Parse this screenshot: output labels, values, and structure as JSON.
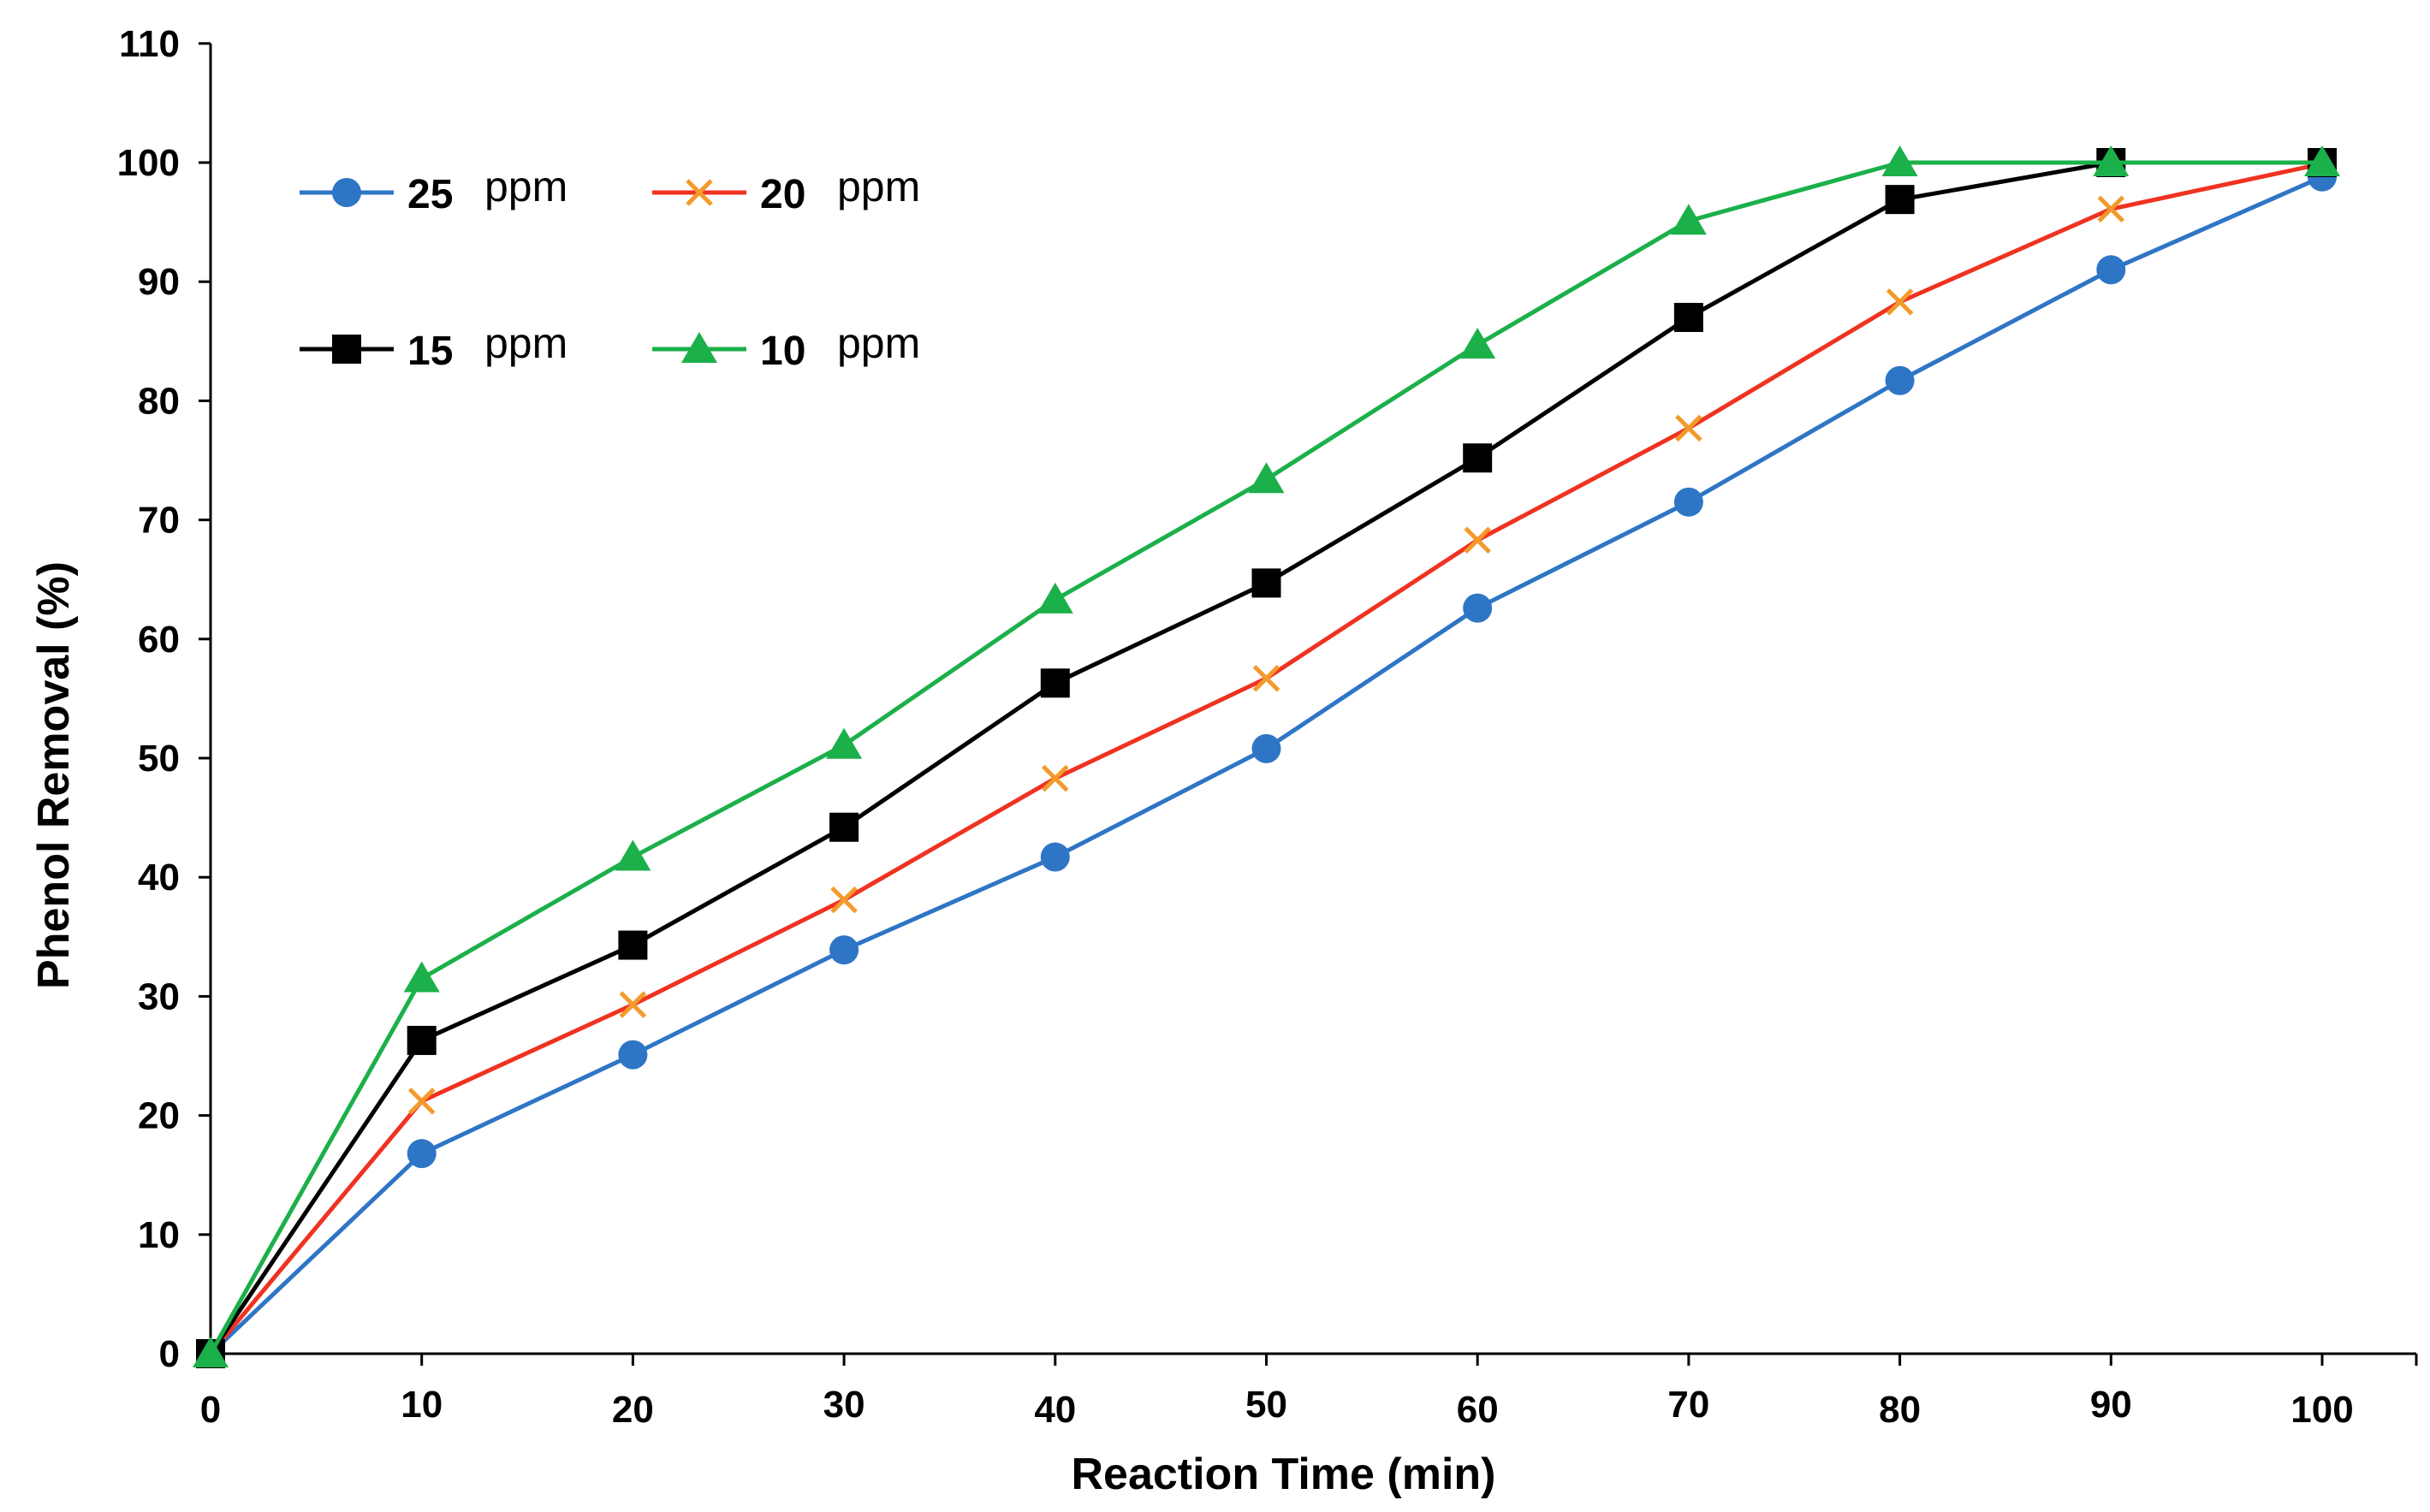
{
  "chart_data": {
    "type": "line",
    "title": "",
    "xlabel": "Reaction Time (min)",
    "ylabel": "Phenol Removal (%)",
    "xlim": [
      0,
      105
    ],
    "ylim": [
      0,
      110
    ],
    "x_ticks": [
      0,
      10,
      20,
      30,
      40,
      50,
      60,
      70,
      80,
      90,
      100
    ],
    "y_ticks": [
      0,
      10,
      20,
      30,
      40,
      50,
      60,
      70,
      80,
      90,
      100,
      110
    ],
    "grid": false,
    "legend_position": "top-left",
    "x": [
      0,
      10,
      20,
      30,
      40,
      50,
      60,
      70,
      80,
      90,
      100
    ],
    "series": [
      {
        "name": "25 ppm",
        "num": "25",
        "unit": "ppm",
        "color": "#2E75C6",
        "marker": "circle",
        "values": [
          0,
          16.8,
          25.1,
          33.9,
          41.7,
          50.8,
          62.6,
          71.5,
          81.7,
          91.0,
          98.8
        ]
      },
      {
        "name": "20 ppm",
        "num": "20",
        "unit": "ppm",
        "color": "#F03221",
        "marker_color": "#F39A2B",
        "marker": "x",
        "values": [
          0,
          21.2,
          29.3,
          38.1,
          48.3,
          56.7,
          68.3,
          77.7,
          88.3,
          96.1,
          99.9
        ]
      },
      {
        "name": "15 ppm",
        "num": "15",
        "unit": "ppm",
        "color": "#000000",
        "marker": "square",
        "values": [
          0,
          26.3,
          34.3,
          44.2,
          56.3,
          64.7,
          75.2,
          87.0,
          96.9,
          100.0,
          100.0
        ]
      },
      {
        "name": "10 ppm",
        "num": "10",
        "unit": "ppm",
        "color": "#1BB04A",
        "marker": "triangle",
        "values": [
          0,
          31.5,
          41.7,
          51.1,
          63.3,
          73.4,
          84.7,
          95.1,
          100.0,
          100.0,
          100.0
        ]
      }
    ]
  }
}
